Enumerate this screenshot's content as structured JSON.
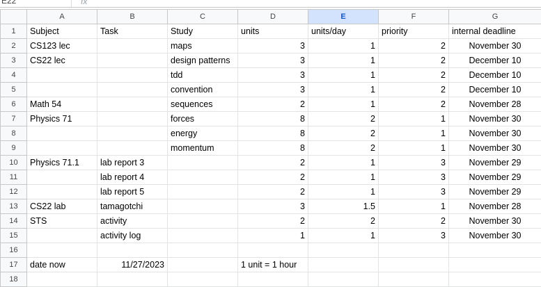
{
  "name_box": "E22",
  "fx_icon": "fx-icon",
  "columns": [
    "A",
    "B",
    "C",
    "D",
    "E",
    "F",
    "G"
  ],
  "selected_column": "E",
  "rows": [
    {
      "n": "1",
      "a": "Subject",
      "b": "Task",
      "c": "Study",
      "d": "units",
      "e": "units/day",
      "f": "priority",
      "g": "internal deadline"
    },
    {
      "n": "2",
      "a": "CS123 lec",
      "b": "",
      "c": "maps",
      "d": "3",
      "e": "1",
      "f": "2",
      "g": "November 30"
    },
    {
      "n": "3",
      "a": "CS22 lec",
      "b": "",
      "c": "design patterns",
      "d": "3",
      "e": "1",
      "f": "2",
      "g": "December 10"
    },
    {
      "n": "4",
      "a": "",
      "b": "",
      "c": "tdd",
      "d": "3",
      "e": "1",
      "f": "2",
      "g": "December 10"
    },
    {
      "n": "5",
      "a": "",
      "b": "",
      "c": "convention",
      "d": "3",
      "e": "1",
      "f": "2",
      "g": "December 10"
    },
    {
      "n": "6",
      "a": "Math 54",
      "b": "",
      "c": "sequences",
      "d": "2",
      "e": "1",
      "f": "2",
      "g": "November 28"
    },
    {
      "n": "7",
      "a": "Physics 71",
      "b": "",
      "c": "forces",
      "d": "8",
      "e": "2",
      "f": "1",
      "g": "November 30"
    },
    {
      "n": "8",
      "a": "",
      "b": "",
      "c": "energy",
      "d": "8",
      "e": "2",
      "f": "1",
      "g": "November 30"
    },
    {
      "n": "9",
      "a": "",
      "b": "",
      "c": "momentum",
      "d": "8",
      "e": "2",
      "f": "1",
      "g": "November 30"
    },
    {
      "n": "10",
      "a": "Physics 71.1",
      "b": "lab report 3",
      "c": "",
      "d": "2",
      "e": "1",
      "f": "3",
      "g": "November 29"
    },
    {
      "n": "11",
      "a": "",
      "b": "lab report 4",
      "c": "",
      "d": "2",
      "e": "1",
      "f": "3",
      "g": "November 29"
    },
    {
      "n": "12",
      "a": "",
      "b": "lab report 5",
      "c": "",
      "d": "2",
      "e": "1",
      "f": "3",
      "g": "November 29"
    },
    {
      "n": "13",
      "a": "CS22 lab",
      "b": "tamagotchi",
      "c": "",
      "d": "3",
      "e": "1.5",
      "f": "1",
      "g": "November 28"
    },
    {
      "n": "14",
      "a": "STS",
      "b": "activity",
      "c": "",
      "d": "2",
      "e": "2",
      "f": "2",
      "g": "November 30"
    },
    {
      "n": "15",
      "a": "",
      "b": "activity log",
      "c": "",
      "d": "1",
      "e": "1",
      "f": "3",
      "g": "November 30"
    },
    {
      "n": "16",
      "a": "",
      "b": "",
      "c": "",
      "d": "",
      "e": "",
      "f": "",
      "g": ""
    },
    {
      "n": "17",
      "a": "date now",
      "b": "11/27/2023",
      "c": "",
      "d": "1 unit = 1 hour",
      "e": "",
      "f": "",
      "g": ""
    },
    {
      "n": "18",
      "a": "",
      "b": "",
      "c": "",
      "d": "",
      "e": "",
      "f": "",
      "g": ""
    }
  ]
}
